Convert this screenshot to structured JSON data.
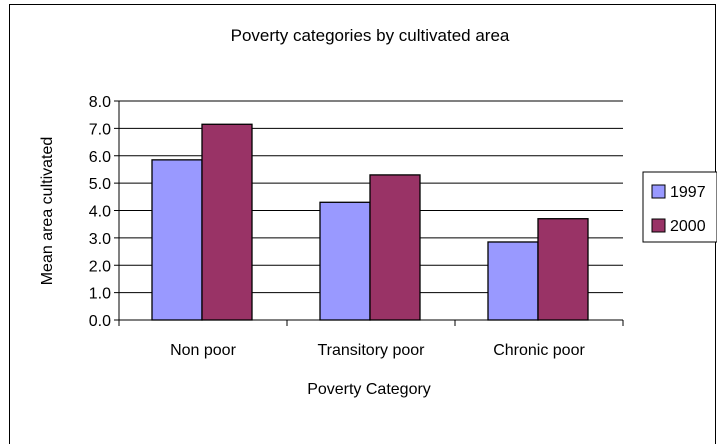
{
  "chart_data": {
    "type": "bar",
    "title": "Poverty categories by cultivated area",
    "xlabel": "Poverty Category",
    "ylabel": "Mean area cultivated",
    "categories": [
      "Non poor",
      "Transitory poor",
      "Chronic poor"
    ],
    "series": [
      {
        "name": "1997",
        "values": [
          5.85,
          4.3,
          2.85
        ],
        "color": "#9999ff"
      },
      {
        "name": "2000",
        "values": [
          7.15,
          5.3,
          3.7
        ],
        "color": "#993366"
      }
    ],
    "ylim": [
      0,
      8
    ],
    "yticks": [
      "0.0",
      "1.0",
      "2.0",
      "3.0",
      "4.0",
      "5.0",
      "6.0",
      "7.0",
      "8.0"
    ],
    "grid": true,
    "legend": "right"
  }
}
